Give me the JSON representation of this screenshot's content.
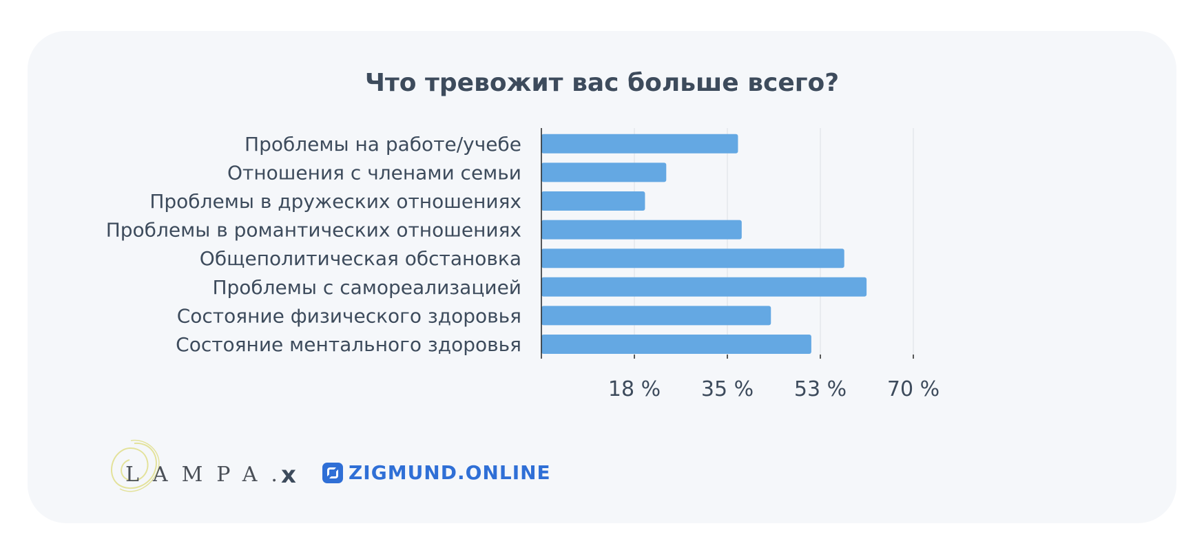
{
  "colors": {
    "bar": "#64a8e3",
    "text": "#3d4b5c",
    "grid": "#dcdfe4",
    "axis": "#222222",
    "brand_blue": "#2f6fd6"
  },
  "chart_data": {
    "type": "bar",
    "orientation": "horizontal",
    "title": "Что тревожит вас больше всего?",
    "categories": [
      "Проблемы на работе/учебе",
      "Отношения с членами семьи",
      "Проблемы в дружеских отношениях",
      "Проблемы в романтических отношениях",
      "Общеполитическая обстановка",
      "Проблемы с самореализацией",
      "Состояние физического здоровья",
      "Состояние ментального здоровья"
    ],
    "values": [
      37,
      23.5,
      19.5,
      37.7,
      57,
      61.2,
      43.2,
      50.8
    ],
    "xlim": [
      0,
      70
    ],
    "x_ticks": [
      17.5,
      35,
      52.5,
      70
    ],
    "x_tick_labels": [
      "18 %",
      "35 %",
      "53 %",
      "70 %"
    ],
    "grid": true
  },
  "logos": {
    "lampa": "LAMPA.",
    "separator": "x",
    "partner": "ZIGMUND.ONLINE",
    "lampa_icon": "lampa-swirl-logo",
    "partner_icon": "zigmund-square-logo"
  }
}
